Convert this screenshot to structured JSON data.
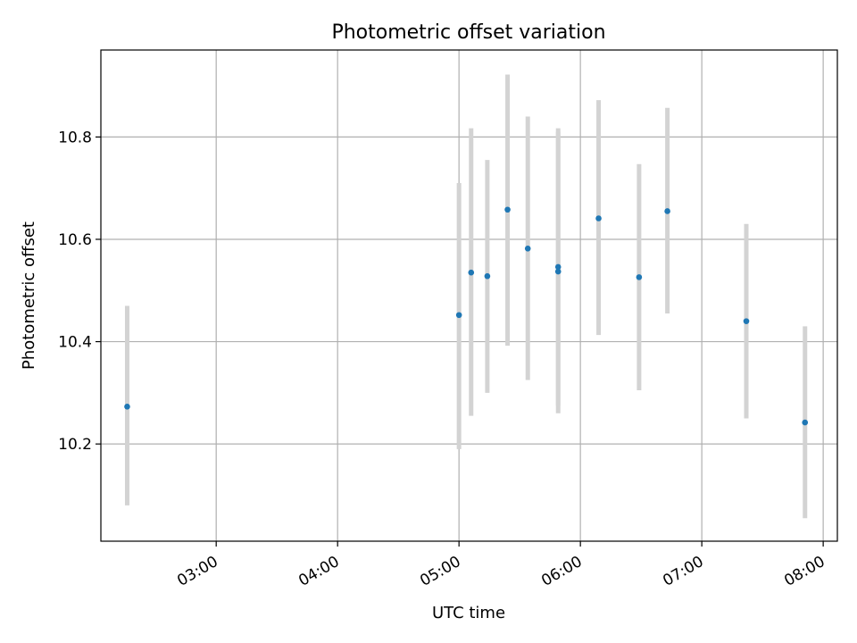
{
  "chart_data": {
    "type": "scatter",
    "title": "Photometric offset variation",
    "xlabel": "UTC time",
    "ylabel": "Photometric offset",
    "x_ticks": [
      "03:00",
      "04:00",
      "05:00",
      "06:00",
      "07:00",
      "08:00"
    ],
    "y_ticks": [
      "10.2",
      "10.4",
      "10.6",
      "10.8"
    ],
    "xlim": [
      "02:03",
      "08:07"
    ],
    "ylim": [
      10.01,
      10.97
    ],
    "grid": true,
    "colors": {
      "point": "#1f77b4",
      "errorbar": "#d3d3d3",
      "grid": "#b0b0b0"
    },
    "points": [
      {
        "x": "02:16",
        "y": 10.273,
        "lo": 10.08,
        "hi": 10.47
      },
      {
        "x": "05:00",
        "y": 10.452,
        "lo": 10.19,
        "hi": 10.71
      },
      {
        "x": "05:06",
        "y": 10.535,
        "lo": 10.255,
        "hi": 10.817
      },
      {
        "x": "05:14",
        "y": 10.528,
        "lo": 10.3,
        "hi": 10.755
      },
      {
        "x": "05:24",
        "y": 10.658,
        "lo": 10.392,
        "hi": 10.922
      },
      {
        "x": "05:34",
        "y": 10.582,
        "lo": 10.325,
        "hi": 10.84
      },
      {
        "x": "05:49",
        "y": 10.537,
        "lo": 10.26,
        "hi": 10.81
      },
      {
        "x": "05:49",
        "y": 10.546,
        "lo": 10.275,
        "hi": 10.817
      },
      {
        "x": "06:09",
        "y": 10.641,
        "lo": 10.413,
        "hi": 10.872
      },
      {
        "x": "06:29",
        "y": 10.526,
        "lo": 10.305,
        "hi": 10.747
      },
      {
        "x": "06:43",
        "y": 10.655,
        "lo": 10.455,
        "hi": 10.857
      },
      {
        "x": "07:22",
        "y": 10.44,
        "lo": 10.25,
        "hi": 10.63
      },
      {
        "x": "07:51",
        "y": 10.242,
        "lo": 10.055,
        "hi": 10.43
      }
    ]
  }
}
